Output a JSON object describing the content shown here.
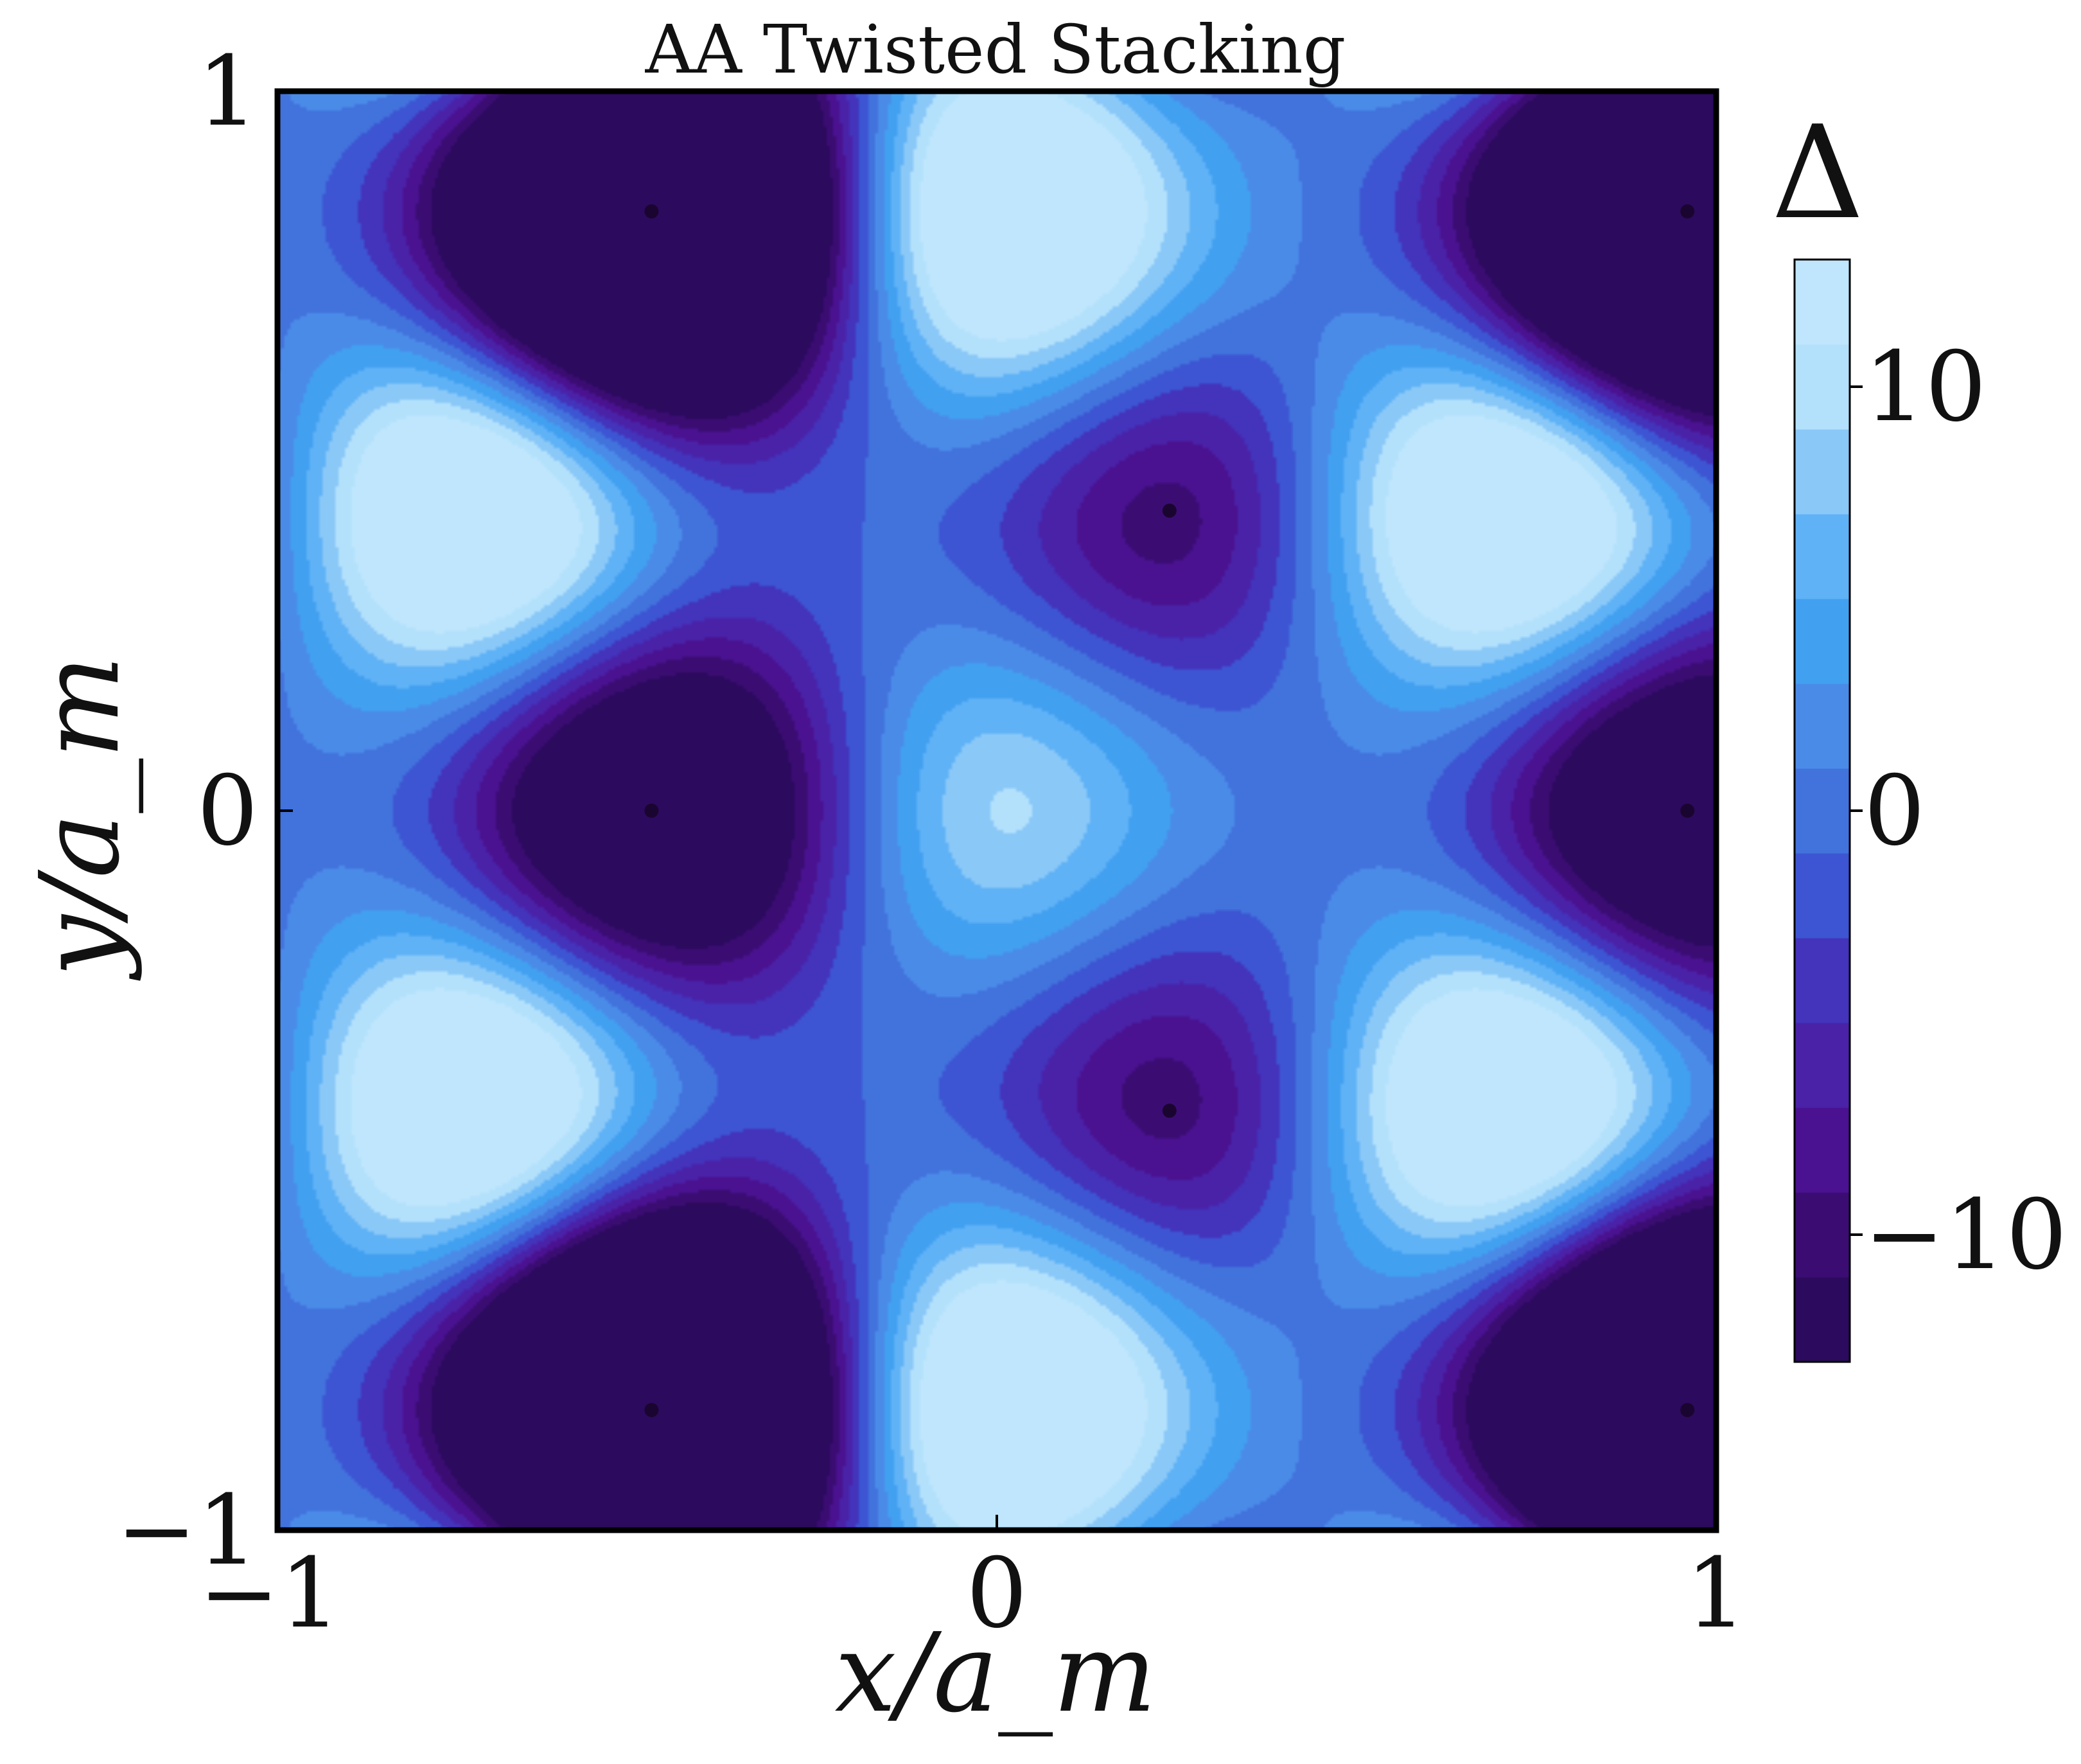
{
  "chart_data": {
    "type": "heatmap",
    "title": "AA Twisted Stacking",
    "xlabel": "x/a_m",
    "ylabel": "y/a_m",
    "xlim": [
      -1,
      1
    ],
    "ylim": [
      -1,
      1
    ],
    "x_ticks": [
      -1,
      0,
      1
    ],
    "y_ticks": [
      -1,
      0,
      1
    ],
    "x_tick_labels": [
      "−1",
      "0",
      "1"
    ],
    "y_tick_labels": [
      "−1",
      "0",
      "1"
    ],
    "colorbar": {
      "label": "Δ",
      "min": -13,
      "max": 13,
      "ticks": [
        10,
        0,
        -10
      ],
      "tick_labels": [
        "10",
        "0",
        "−10"
      ],
      "levels": 13,
      "colors": [
        "#2c0a5e",
        "#3b0d73",
        "#4a1290",
        "#4a22a8",
        "#4433bb",
        "#3d55d3",
        "#4272dc",
        "#4a8be8",
        "#42a0f1",
        "#5fb2f6",
        "#8ac8f8",
        "#b3e1fc",
        "#bfe6fd"
      ]
    },
    "maxima": [
      {
        "x": 0.0,
        "y": 0.0,
        "value": 12
      },
      {
        "x": 0.0,
        "y": 0.833,
        "value": 12
      },
      {
        "x": 0.0,
        "y": -0.833,
        "value": 12
      },
      {
        "x": -0.72,
        "y": 0.417,
        "value": 12
      },
      {
        "x": -0.72,
        "y": -0.417,
        "value": 12
      },
      {
        "x": 0.72,
        "y": 0.417,
        "value": 12
      },
      {
        "x": 0.72,
        "y": -0.417,
        "value": 12
      }
    ],
    "minima": [
      {
        "x": -0.48,
        "y": 0.833,
        "value": -13
      },
      {
        "x": -0.48,
        "y": 0.0,
        "value": -13
      },
      {
        "x": -0.48,
        "y": -0.833,
        "value": -13
      },
      {
        "x": 0.24,
        "y": 0.417,
        "value": -13
      },
      {
        "x": 0.24,
        "y": -0.417,
        "value": -13
      },
      {
        "x": 0.96,
        "y": 0.833,
        "value": -13
      },
      {
        "x": 0.96,
        "y": 0.0,
        "value": -13
      },
      {
        "x": 0.96,
        "y": -0.833,
        "value": -13
      }
    ]
  }
}
